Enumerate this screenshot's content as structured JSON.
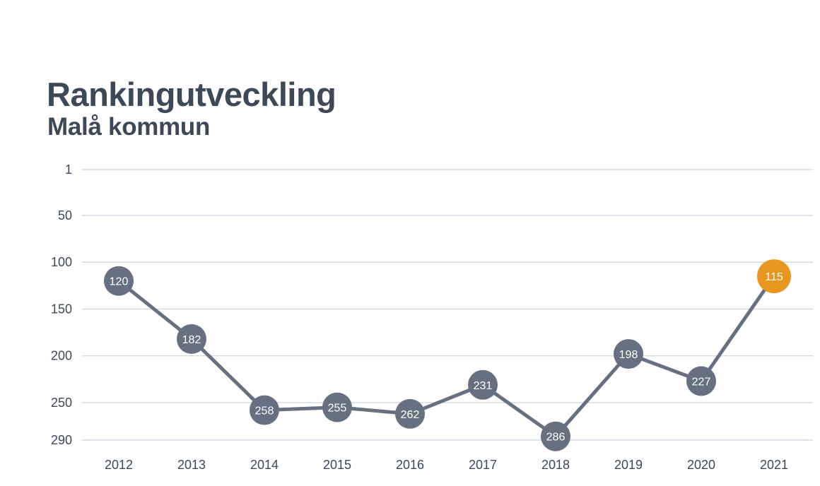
{
  "header": {
    "title": "Rankingutveckling",
    "subtitle": "Malå kommun"
  },
  "colors": {
    "line": "#667080",
    "point": "#667080",
    "highlight": "#e8961e",
    "grid": "#ccd5e0",
    "text": "#3d4858"
  },
  "chart_data": {
    "type": "line",
    "title": "Rankingutveckling",
    "subtitle": "Malå kommun",
    "xlabel": "",
    "ylabel": "",
    "y_axis_inverted": true,
    "ylim": [
      1,
      290
    ],
    "yticks": [
      1,
      50,
      100,
      150,
      200,
      250,
      290
    ],
    "grid": true,
    "categories": [
      "2012",
      "2013",
      "2014",
      "2015",
      "2016",
      "2017",
      "2018",
      "2019",
      "2020",
      "2021"
    ],
    "series": [
      {
        "values": [
          120,
          182,
          258,
          255,
          262,
          231,
          286,
          198,
          227,
          115
        ]
      }
    ],
    "highlight_index": 9
  }
}
